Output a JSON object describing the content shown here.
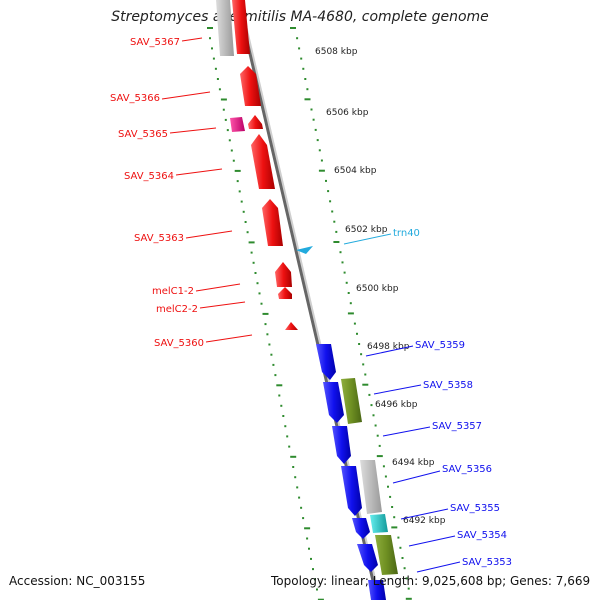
{
  "title": "Streptomyces avermitilis MA-4680, complete genome",
  "footer": {
    "accession": "Accession: NC_003155",
    "topology": "Topology: linear; Length: 9,025,608 bp; Genes: 7,669"
  },
  "colors": {
    "red": "#ee1111",
    "blue": "#1111ee",
    "gray": "#bbbbbb",
    "magenta": "#dd1177",
    "olive": "#6e8f22",
    "cyan": "#22cccc",
    "trna": "#22aadd",
    "ruler": "#2e8b2e",
    "backbone": "#888888"
  },
  "ruler": {
    "labels": [
      "6508 kbp",
      "6506 kbp",
      "6504 kbp",
      "6502 kbp",
      "6500 kbp",
      "6498 kbp",
      "6496 kbp",
      "6494 kbp",
      "6492 kbp"
    ]
  },
  "genes_left": [
    "SAV_5367",
    "SAV_5366",
    "SAV_5365",
    "SAV_5364",
    "SAV_5363",
    "melC1-2",
    "melC2-2",
    "SAV_5360"
  ],
  "genes_right": [
    "trn40",
    "SAV_5359",
    "SAV_5358",
    "SAV_5357",
    "SAV_5356",
    "SAV_5355",
    "SAV_5354",
    "SAV_5353"
  ]
}
